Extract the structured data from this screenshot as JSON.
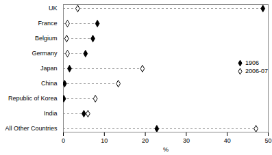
{
  "chart_data": {
    "type": "dot",
    "orientation": "horizontal",
    "categories": [
      "UK",
      "France",
      "Belgium",
      "Germany",
      "Japan",
      "China",
      "Republic of Korea",
      "India",
      "All Other Countries"
    ],
    "series": [
      {
        "name": "1906",
        "color": "#000000",
        "marker": "diamond",
        "values": [
          48.7,
          8.3,
          7.2,
          5.4,
          1.5,
          0.3,
          0.1,
          5.0,
          22.8
        ]
      },
      {
        "name": "2006-07",
        "color": "#000000",
        "marker": "open_diamond",
        "values": [
          3.5,
          1.0,
          0.8,
          1.0,
          19.3,
          13.4,
          7.8,
          6.0,
          47.0
        ]
      }
    ],
    "xlabel": "%",
    "xlim": [
      0,
      50
    ],
    "xticks": [
      0,
      10,
      20,
      30,
      40,
      50
    ],
    "line_style": "dashed",
    "legend": "right"
  }
}
